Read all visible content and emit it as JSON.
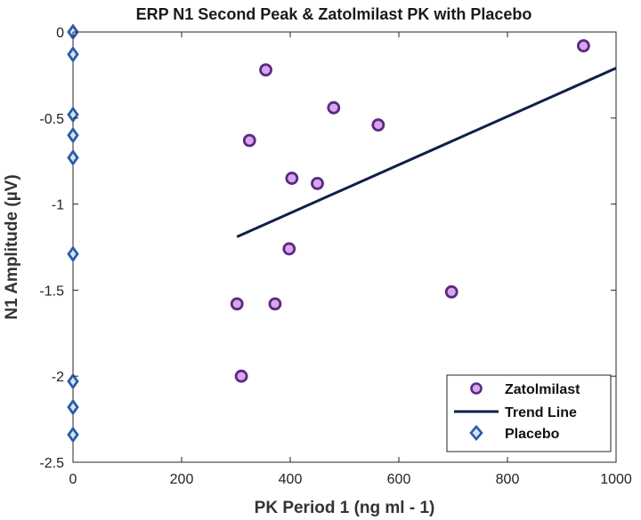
{
  "chart_data": {
    "type": "scatter",
    "title": "ERP N1 Second Peak & Zatolmilast PK with Placebo",
    "xlabel": "PK Period 1 (ng ml - 1)",
    "ylabel": "N1 Amplitude (µV)",
    "xlim": [
      0,
      1000
    ],
    "ylim": [
      -2.5,
      0
    ],
    "xticks": [
      0,
      200,
      400,
      600,
      800,
      1000
    ],
    "xtick_labels": [
      "0",
      "200",
      "400",
      "600",
      "800",
      "1000"
    ],
    "yticks": [
      0,
      -0.5,
      -1,
      -1.5,
      -2,
      -2.5
    ],
    "ytick_labels": [
      "0",
      "-0.5",
      "-1",
      "-1.5",
      "-2",
      "-2.5"
    ],
    "legend_position": "bottom-right",
    "series": [
      {
        "name": "Zatolmilast",
        "marker": "circle",
        "face_color": "#d9a6ee",
        "edge_color": "#5a2a82",
        "x": [
          940,
          355,
          480,
          562,
          325,
          403,
          450,
          398,
          302,
          372,
          697,
          310
        ],
        "y": [
          -0.08,
          -0.22,
          -0.44,
          -0.54,
          -0.63,
          -0.85,
          -0.88,
          -1.26,
          -1.58,
          -1.58,
          -1.51,
          -2.0
        ]
      },
      {
        "name": "Trend Line",
        "marker": "line",
        "color": "#0e2147",
        "x": [
          302,
          1000
        ],
        "y": [
          -1.19,
          -0.21
        ]
      },
      {
        "name": "Placebo",
        "marker": "diamond",
        "face_color": "#d6e6f5",
        "edge_color": "#2a5caa",
        "x": [
          0,
          0,
          0,
          0,
          0,
          0,
          0,
          0,
          0
        ],
        "y": [
          0,
          -0.13,
          -0.48,
          -0.6,
          -0.73,
          -1.29,
          -2.03,
          -2.18,
          -2.34
        ]
      }
    ]
  }
}
